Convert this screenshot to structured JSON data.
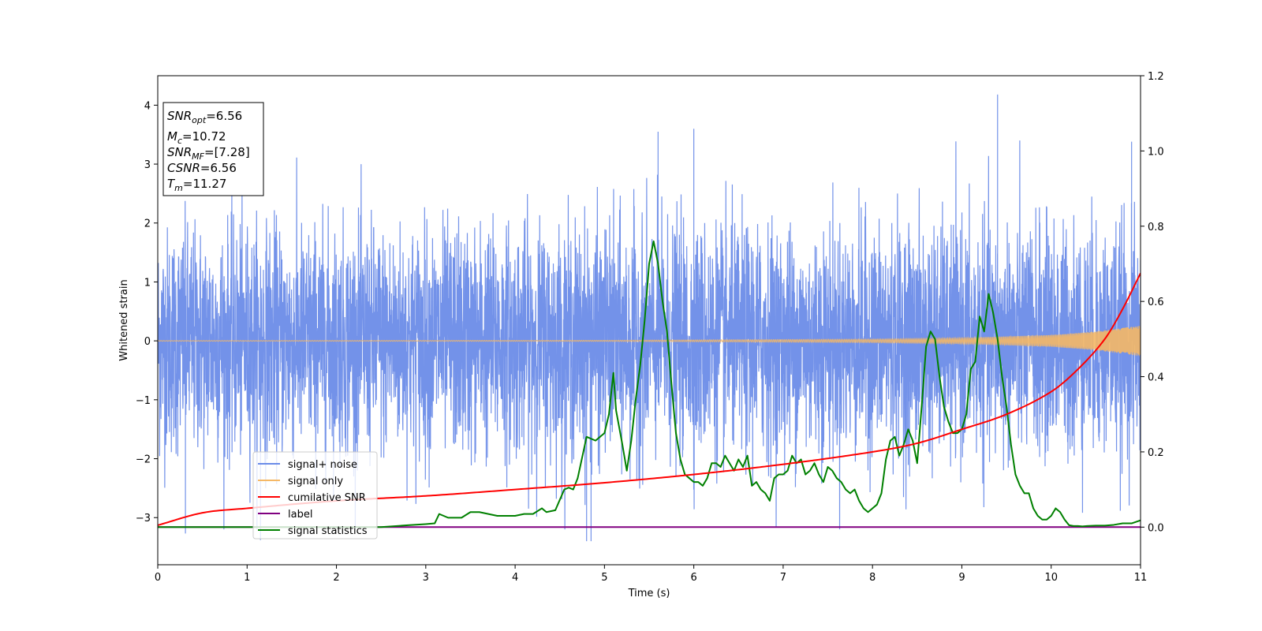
{
  "chart_data": {
    "type": "line",
    "xlabel": "Time (s)",
    "ylabel": "Whitened strain",
    "xlim": [
      0,
      11
    ],
    "ylim_left": [
      -3.8,
      4.5
    ],
    "ylim_right": [
      -0.1,
      1.2
    ],
    "x_ticks": [
      "0",
      "1",
      "2",
      "3",
      "4",
      "5",
      "6",
      "7",
      "8",
      "9",
      "10",
      "11"
    ],
    "y_ticks_left": [
      "−3",
      "−2",
      "−1",
      "0",
      "1",
      "2",
      "3",
      "4"
    ],
    "y_ticks_right": [
      "0.0",
      "0.2",
      "0.4",
      "0.6",
      "0.8",
      "1.0",
      "1.2"
    ],
    "info_box": {
      "snr_opt": {
        "symbol": "SNR",
        "sub": "opt",
        "value": "=6.56"
      },
      "mc": {
        "symbol": "M",
        "sub": "c",
        "value": "=10.72"
      },
      "snr_mf": {
        "symbol": "SNR",
        "sub": "MF",
        "value": "=[7.28]"
      },
      "csnr": {
        "symbol": "CSNR",
        "value": "=6.56"
      },
      "tm": {
        "symbol": "T",
        "sub": "m",
        "value": "=11.27"
      }
    },
    "legend": {
      "position": "lower left",
      "entries": [
        {
          "label": "signal+ noise",
          "color": "#6b8ce8"
        },
        {
          "label": "signal only",
          "color": "#f5b866"
        },
        {
          "label": "cumilative SNR",
          "color": "#ff0000"
        },
        {
          "label": "label",
          "color": "#800080"
        },
        {
          "label": "signal statistics",
          "color": "#008000"
        }
      ]
    },
    "series": [
      {
        "name": "signal+ noise",
        "axis": "left",
        "color": "#6b8ce8",
        "description_of_values": "whitened noise, approx. gaussian, std ~0.95, range about -3.4 to 4.2",
        "extremes": [
          [
            0.31,
            -3.27
          ],
          [
            1.15,
            -3.38
          ],
          [
            4.8,
            -3.4
          ],
          [
            4.85,
            -3.4
          ],
          [
            5.6,
            3.55
          ],
          [
            6.0,
            3.6
          ],
          [
            9.4,
            4.18
          ],
          [
            10.9,
            3.38
          ]
        ]
      },
      {
        "name": "signal only",
        "axis": "left",
        "color": "#f5b866",
        "envelope": [
          [
            0,
            0.005
          ],
          [
            5,
            0.01
          ],
          [
            8,
            0.03
          ],
          [
            9,
            0.05
          ],
          [
            10,
            0.1
          ],
          [
            10.5,
            0.16
          ],
          [
            11,
            0.26
          ]
        ]
      },
      {
        "name": "cumilative SNR",
        "axis": "right",
        "color": "#ff0000",
        "x": [
          0,
          0.5,
          1,
          2,
          3,
          4,
          5,
          6,
          7,
          8,
          8.5,
          9,
          9.5,
          10,
          10.3,
          10.6,
          10.8,
          11
        ],
        "y": [
          0.005,
          0.038,
          0.05,
          0.07,
          0.083,
          0.1,
          0.118,
          0.14,
          0.167,
          0.2,
          0.223,
          0.26,
          0.3,
          0.36,
          0.42,
          0.5,
          0.58,
          0.675
        ]
      },
      {
        "name": "label",
        "axis": "right",
        "color": "#800080",
        "x": [
          0,
          11
        ],
        "y": [
          0,
          0
        ]
      },
      {
        "name": "signal statistics",
        "axis": "right",
        "color": "#008000",
        "x": [
          0,
          2.5,
          2.8,
          3.0,
          3.1,
          3.15,
          3.25,
          3.4,
          3.5,
          3.6,
          3.8,
          4.0,
          4.1,
          4.2,
          4.3,
          4.35,
          4.45,
          4.55,
          4.6,
          4.65,
          4.7,
          4.8,
          4.9,
          5.0,
          5.05,
          5.1,
          5.13,
          5.2,
          5.25,
          5.3,
          5.35,
          5.4,
          5.45,
          5.5,
          5.55,
          5.6,
          5.65,
          5.7,
          5.75,
          5.8,
          5.85,
          5.9,
          5.95,
          6.0,
          6.05,
          6.1,
          6.15,
          6.2,
          6.25,
          6.3,
          6.35,
          6.4,
          6.45,
          6.5,
          6.55,
          6.6,
          6.65,
          6.7,
          6.75,
          6.8,
          6.85,
          6.9,
          6.95,
          7.0,
          7.05,
          7.1,
          7.15,
          7.2,
          7.25,
          7.3,
          7.35,
          7.4,
          7.45,
          7.5,
          7.55,
          7.6,
          7.65,
          7.7,
          7.75,
          7.8,
          7.85,
          7.9,
          7.95,
          8.0,
          8.05,
          8.1,
          8.15,
          8.2,
          8.25,
          8.3,
          8.35,
          8.4,
          8.45,
          8.5,
          8.55,
          8.6,
          8.65,
          8.7,
          8.75,
          8.8,
          8.85,
          8.9,
          8.95,
          9.0,
          9.05,
          9.1,
          9.15,
          9.2,
          9.25,
          9.3,
          9.35,
          9.4,
          9.45,
          9.5,
          9.55,
          9.6,
          9.65,
          9.7,
          9.75,
          9.8,
          9.85,
          9.9,
          9.95,
          10.0,
          10.05,
          10.1,
          10.15,
          10.2,
          10.25,
          10.3,
          10.35,
          10.4,
          10.5,
          10.6,
          10.7,
          10.8,
          10.9,
          11.0
        ],
        "y": [
          0.0,
          0.0,
          0.005,
          0.008,
          0.01,
          0.035,
          0.025,
          0.025,
          0.04,
          0.04,
          0.03,
          0.03,
          0.035,
          0.035,
          0.05,
          0.04,
          0.045,
          0.1,
          0.105,
          0.1,
          0.13,
          0.24,
          0.23,
          0.25,
          0.3,
          0.41,
          0.31,
          0.22,
          0.15,
          0.23,
          0.34,
          0.43,
          0.55,
          0.7,
          0.76,
          0.7,
          0.6,
          0.52,
          0.38,
          0.25,
          0.18,
          0.14,
          0.13,
          0.12,
          0.12,
          0.11,
          0.13,
          0.17,
          0.17,
          0.16,
          0.19,
          0.17,
          0.15,
          0.18,
          0.16,
          0.19,
          0.11,
          0.12,
          0.1,
          0.09,
          0.07,
          0.13,
          0.14,
          0.14,
          0.15,
          0.19,
          0.17,
          0.18,
          0.14,
          0.15,
          0.17,
          0.14,
          0.12,
          0.16,
          0.15,
          0.13,
          0.12,
          0.1,
          0.09,
          0.1,
          0.07,
          0.05,
          0.04,
          0.05,
          0.06,
          0.09,
          0.18,
          0.23,
          0.24,
          0.19,
          0.22,
          0.26,
          0.23,
          0.17,
          0.32,
          0.48,
          0.52,
          0.5,
          0.4,
          0.32,
          0.28,
          0.25,
          0.25,
          0.26,
          0.3,
          0.42,
          0.44,
          0.56,
          0.52,
          0.62,
          0.57,
          0.5,
          0.4,
          0.32,
          0.22,
          0.14,
          0.11,
          0.09,
          0.09,
          0.05,
          0.03,
          0.02,
          0.02,
          0.03,
          0.05,
          0.04,
          0.02,
          0.005,
          0.003,
          0.003,
          0.002,
          0.003,
          0.004,
          0.004,
          0.006,
          0.01,
          0.01,
          0.018
        ]
      }
    ]
  }
}
